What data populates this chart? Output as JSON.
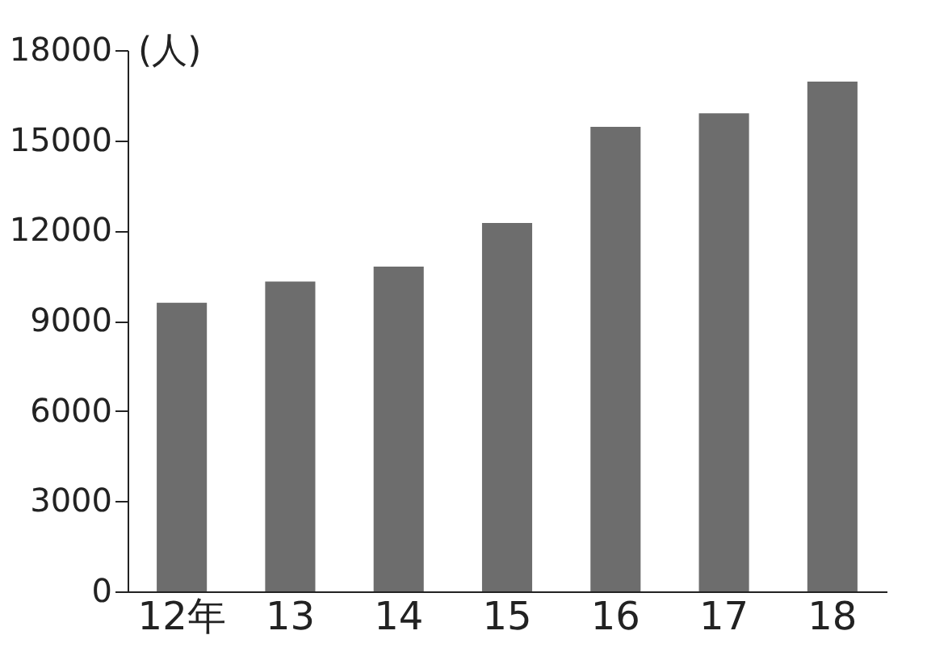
{
  "chart_data": {
    "type": "bar",
    "ylabel": "(人)",
    "categories": [
      "12年",
      "13",
      "14",
      "15",
      "16",
      "17",
      "18"
    ],
    "values": [
      9600,
      10300,
      10800,
      12250,
      15450,
      15900,
      16950
    ],
    "color": "#6d6d6d",
    "ylim": [
      0,
      18000
    ],
    "yticks": [
      0,
      3000,
      6000,
      9000,
      12000,
      15000,
      18000
    ],
    "grid": false
  }
}
